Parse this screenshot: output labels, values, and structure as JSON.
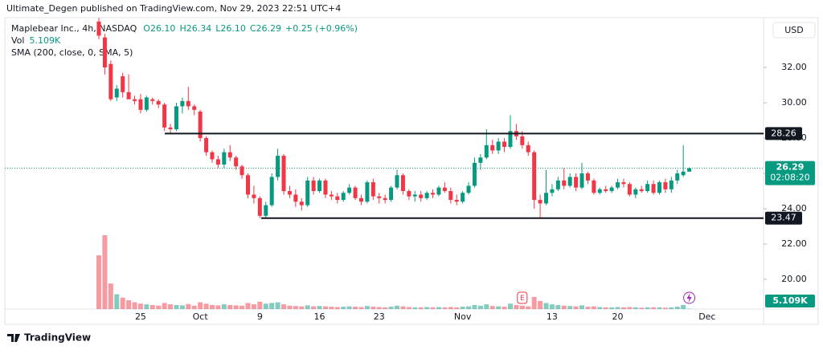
{
  "header": "Ultimate_Degen published on TradingView.com, Nov 29, 2023 22:51 UTC+4",
  "footer": "TradingView",
  "chart_data": {
    "type": "candlestick",
    "currency": "USD",
    "legend": {
      "symbol": "Maplebear Inc., 4h, NASDAQ",
      "ohlc": [
        "O26.10",
        "H26.34",
        "L26.10",
        "C26.29",
        "+0.25 (+0.96%)"
      ],
      "vol": "Vol",
      "vol_value": "5.109K",
      "sma": "SMA (200, close, 0, SMA, 5)"
    },
    "up_color": "#089981",
    "down_color": "#f23645",
    "categories": [
      null,
      null,
      null,
      null,
      null,
      null,
      null,
      "25",
      null,
      null,
      null,
      null,
      null,
      null,
      null,
      null,
      null,
      "Oct",
      null,
      null,
      null,
      null,
      null,
      null,
      null,
      null,
      null,
      "9",
      null,
      null,
      null,
      null,
      null,
      null,
      null,
      null,
      null,
      "16",
      null,
      null,
      null,
      null,
      null,
      null,
      null,
      null,
      null,
      "23",
      null,
      null,
      null,
      null,
      null,
      null,
      null,
      null,
      null,
      null,
      null,
      null,
      null,
      "Nov",
      null,
      null,
      null,
      null,
      null,
      null,
      null,
      null,
      null,
      null,
      null,
      null,
      null,
      null,
      "13",
      null,
      null,
      null,
      null,
      null,
      null,
      null,
      null,
      null,
      null,
      "20",
      null,
      null,
      null,
      null,
      null,
      null,
      null,
      null,
      null,
      null,
      null,
      null,
      null,
      null,
      "Dec"
    ],
    "candles": [
      [
        34.6,
        34.8,
        33.6,
        33.8
      ],
      [
        33.7,
        33.9,
        31.6,
        32.0
      ],
      [
        32.2,
        32.4,
        30.1,
        30.2
      ],
      [
        30.3,
        31.0,
        30.1,
        30.8
      ],
      [
        31.5,
        31.7,
        30.3,
        30.6
      ],
      [
        30.6,
        31.6,
        30.2,
        30.2
      ],
      [
        30.2,
        30.4,
        29.9,
        30.1
      ],
      [
        30.2,
        30.5,
        29.4,
        29.6
      ],
      [
        29.6,
        30.4,
        29.5,
        30.3
      ],
      [
        30.2,
        30.3,
        29.9,
        30.1
      ],
      [
        30.1,
        30.2,
        29.7,
        29.9
      ],
      [
        29.9,
        30.0,
        28.4,
        28.6
      ],
      [
        28.6,
        28.8,
        28.3,
        28.5
      ],
      [
        28.5,
        30.0,
        28.4,
        29.8
      ],
      [
        29.8,
        30.3,
        29.4,
        30.1
      ],
      [
        30.1,
        30.9,
        29.6,
        29.8
      ],
      [
        29.8,
        29.9,
        29.3,
        29.6
      ],
      [
        29.5,
        29.6,
        27.8,
        28.0
      ],
      [
        28.0,
        28.1,
        27.0,
        27.2
      ],
      [
        27.2,
        27.3,
        26.6,
        26.8
      ],
      [
        26.8,
        27.0,
        26.3,
        26.5
      ],
      [
        26.5,
        27.4,
        26.3,
        27.2
      ],
      [
        27.2,
        27.6,
        26.7,
        26.9
      ],
      [
        26.9,
        27.0,
        26.2,
        26.4
      ],
      [
        26.4,
        26.5,
        25.7,
        25.9
      ],
      [
        25.9,
        26.0,
        24.6,
        24.8
      ],
      [
        24.8,
        25.3,
        24.3,
        24.6
      ],
      [
        24.6,
        24.7,
        23.47,
        23.6
      ],
      [
        23.6,
        24.4,
        23.5,
        24.2
      ],
      [
        24.2,
        26.0,
        24.1,
        25.8
      ],
      [
        25.8,
        27.4,
        25.6,
        27.0
      ],
      [
        27.0,
        27.1,
        24.8,
        25.0
      ],
      [
        25.0,
        25.3,
        24.6,
        24.8
      ],
      [
        24.8,
        25.1,
        24.1,
        24.4
      ],
      [
        24.4,
        24.6,
        23.9,
        24.2
      ],
      [
        24.2,
        25.8,
        24.1,
        25.6
      ],
      [
        25.6,
        25.8,
        24.8,
        25.0
      ],
      [
        25.0,
        25.7,
        24.9,
        25.6
      ],
      [
        25.6,
        25.7,
        24.6,
        24.8
      ],
      [
        24.8,
        25.0,
        24.5,
        24.7
      ],
      [
        24.7,
        24.9,
        24.3,
        24.5
      ],
      [
        24.5,
        25.0,
        24.4,
        24.9
      ],
      [
        24.9,
        25.4,
        24.8,
        25.2
      ],
      [
        25.2,
        25.3,
        24.5,
        24.6
      ],
      [
        24.6,
        24.8,
        24.2,
        24.4
      ],
      [
        24.4,
        25.6,
        24.3,
        25.5
      ],
      [
        25.5,
        25.7,
        24.5,
        24.7
      ],
      [
        24.7,
        24.9,
        24.3,
        24.6
      ],
      [
        24.6,
        24.8,
        24.3,
        24.5
      ],
      [
        24.5,
        25.3,
        24.4,
        25.2
      ],
      [
        25.2,
        26.2,
        25.1,
        25.9
      ],
      [
        25.9,
        26.0,
        24.8,
        25.0
      ],
      [
        25.0,
        25.1,
        24.5,
        24.7
      ],
      [
        24.7,
        25.0,
        24.4,
        24.8
      ],
      [
        24.8,
        25.0,
        24.4,
        24.6
      ],
      [
        24.6,
        25.0,
        24.5,
        24.9
      ],
      [
        24.9,
        25.1,
        24.6,
        24.8
      ],
      [
        24.8,
        25.3,
        24.7,
        25.2
      ],
      [
        25.2,
        25.5,
        24.9,
        25.0
      ],
      [
        25.0,
        25.2,
        24.3,
        24.5
      ],
      [
        24.5,
        24.8,
        24.2,
        24.4
      ],
      [
        24.4,
        25.0,
        24.3,
        24.9
      ],
      [
        24.9,
        25.5,
        24.8,
        25.3
      ],
      [
        25.3,
        26.9,
        25.2,
        26.6
      ],
      [
        26.6,
        27.1,
        26.2,
        26.9
      ],
      [
        26.9,
        28.5,
        26.8,
        27.6
      ],
      [
        27.6,
        27.9,
        27.1,
        27.3
      ],
      [
        27.3,
        28.0,
        27.1,
        27.8
      ],
      [
        27.8,
        28.0,
        27.2,
        27.5
      ],
      [
        27.5,
        29.3,
        27.4,
        28.4
      ],
      [
        28.4,
        28.8,
        27.9,
        28.1
      ],
      [
        28.1,
        28.4,
        27.4,
        27.6
      ],
      [
        27.6,
        27.8,
        27.0,
        27.2
      ],
      [
        27.2,
        27.3,
        24.0,
        24.5
      ],
      [
        24.5,
        24.8,
        23.5,
        24.3
      ],
      [
        24.3,
        26.2,
        24.2,
        24.9
      ],
      [
        24.9,
        25.4,
        24.7,
        25.1
      ],
      [
        25.1,
        25.8,
        25.0,
        25.6
      ],
      [
        25.6,
        26.3,
        25.1,
        25.3
      ],
      [
        25.3,
        26.0,
        25.2,
        25.8
      ],
      [
        25.8,
        26.0,
        25.0,
        25.2
      ],
      [
        25.2,
        26.6,
        25.1,
        26.0
      ],
      [
        26.0,
        26.1,
        25.4,
        25.6
      ],
      [
        25.6,
        25.7,
        24.8,
        24.9
      ],
      [
        24.9,
        25.2,
        24.8,
        25.1
      ],
      [
        25.1,
        25.3,
        24.9,
        25.0
      ],
      [
        25.0,
        25.3,
        24.9,
        25.2
      ],
      [
        25.2,
        25.7,
        25.1,
        25.5
      ],
      [
        25.5,
        25.7,
        25.2,
        25.4
      ],
      [
        25.4,
        25.5,
        24.7,
        24.8
      ],
      [
        24.8,
        25.2,
        24.6,
        25.1
      ],
      [
        25.1,
        25.3,
        24.9,
        25.0
      ],
      [
        25.0,
        25.6,
        24.9,
        25.4
      ],
      [
        25.4,
        25.6,
        24.8,
        24.9
      ],
      [
        24.9,
        25.6,
        24.8,
        25.5
      ],
      [
        25.5,
        25.7,
        24.9,
        25.1
      ],
      [
        25.1,
        25.8,
        24.9,
        25.6
      ],
      [
        25.6,
        26.2,
        25.4,
        26.0
      ],
      [
        25.9,
        27.6,
        25.8,
        26.1
      ],
      [
        26.1,
        26.34,
        26.1,
        26.29
      ],
      null,
      null,
      null
    ],
    "volume": [
      800,
      1100,
      380,
      220,
      170,
      130,
      100,
      80,
      70,
      60,
      50,
      90,
      70,
      60,
      55,
      75,
      50,
      100,
      80,
      60,
      55,
      70,
      60,
      55,
      50,
      90,
      70,
      110,
      80,
      90,
      100,
      70,
      50,
      45,
      40,
      55,
      40,
      45,
      40,
      35,
      30,
      35,
      40,
      35,
      30,
      45,
      35,
      30,
      25,
      35,
      50,
      40,
      30,
      25,
      25,
      30,
      25,
      30,
      25,
      30,
      25,
      35,
      40,
      60,
      50,
      70,
      45,
      40,
      35,
      80,
      60,
      50,
      40,
      180,
      120,
      90,
      70,
      60,
      50,
      45,
      40,
      55,
      35,
      40,
      30,
      25,
      25,
      30,
      25,
      30,
      25,
      20,
      25,
      25,
      25,
      20,
      25,
      35,
      60,
      5.109,
      null,
      null,
      null
    ],
    "volume_label": "5.109K",
    "ylim": [
      18.32,
      34.82
    ],
    "yticks": [
      {
        "value": 20,
        "label": "20.00"
      },
      {
        "value": 22,
        "label": "22.00"
      },
      {
        "value": 24,
        "label": "24.00"
      },
      {
        "value": 26,
        "label": "26.00"
      },
      {
        "value": 28,
        "label": "28.00"
      },
      {
        "value": 30,
        "label": "30.00"
      },
      {
        "value": 32,
        "label": "32.00"
      }
    ],
    "grid": false,
    "levels": [
      {
        "value": 28.26,
        "label": "28.26"
      },
      {
        "value": 23.47,
        "label": "23.47"
      }
    ],
    "last": {
      "value": 26.29,
      "label": "26.29",
      "countdown": "02:08:20"
    },
    "earnings_marker": "E"
  }
}
